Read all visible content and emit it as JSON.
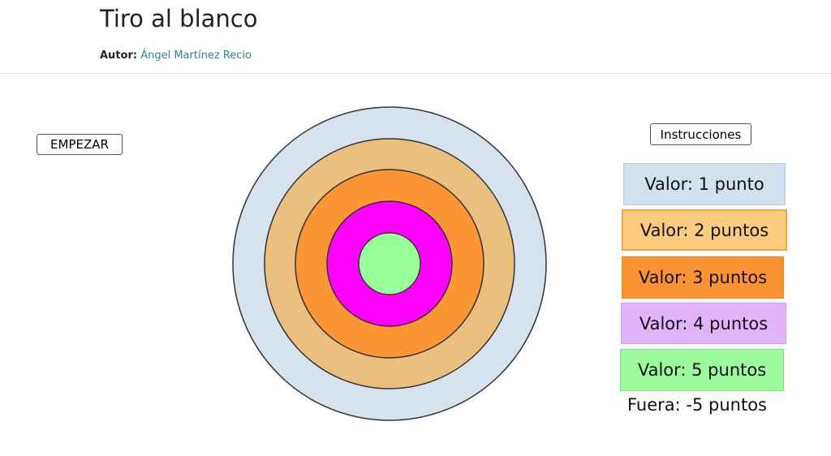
{
  "header": {
    "title": "Tiro al blanco",
    "author_label": "Autor:",
    "author_name": "Ángel Martínez Recio"
  },
  "controls": {
    "start_label": "EMPEZAR",
    "instructions_label": "Instrucciones"
  },
  "target": {
    "rings": [
      {
        "points": 1,
        "color": "#d6e2ee"
      },
      {
        "points": 2,
        "color": "#ebc07e"
      },
      {
        "points": 3,
        "color": "#fc9533"
      },
      {
        "points": 4,
        "color": "#ff00ff"
      },
      {
        "points": 5,
        "color": "#99ff99"
      }
    ]
  },
  "legend": {
    "items": [
      {
        "label": "Valor: 1 punto",
        "color": "#d3e1ee"
      },
      {
        "label": "Valor: 2 puntos",
        "color": "#fccb7e"
      },
      {
        "label": "Valor: 3 puntos",
        "color": "#fb9333"
      },
      {
        "label": "Valor: 4 puntos",
        "color": "#e0b3fb"
      },
      {
        "label": "Valor: 5 puntos",
        "color": "#9cfa9c"
      }
    ],
    "outside_label": "Fuera: -5 puntos"
  }
}
